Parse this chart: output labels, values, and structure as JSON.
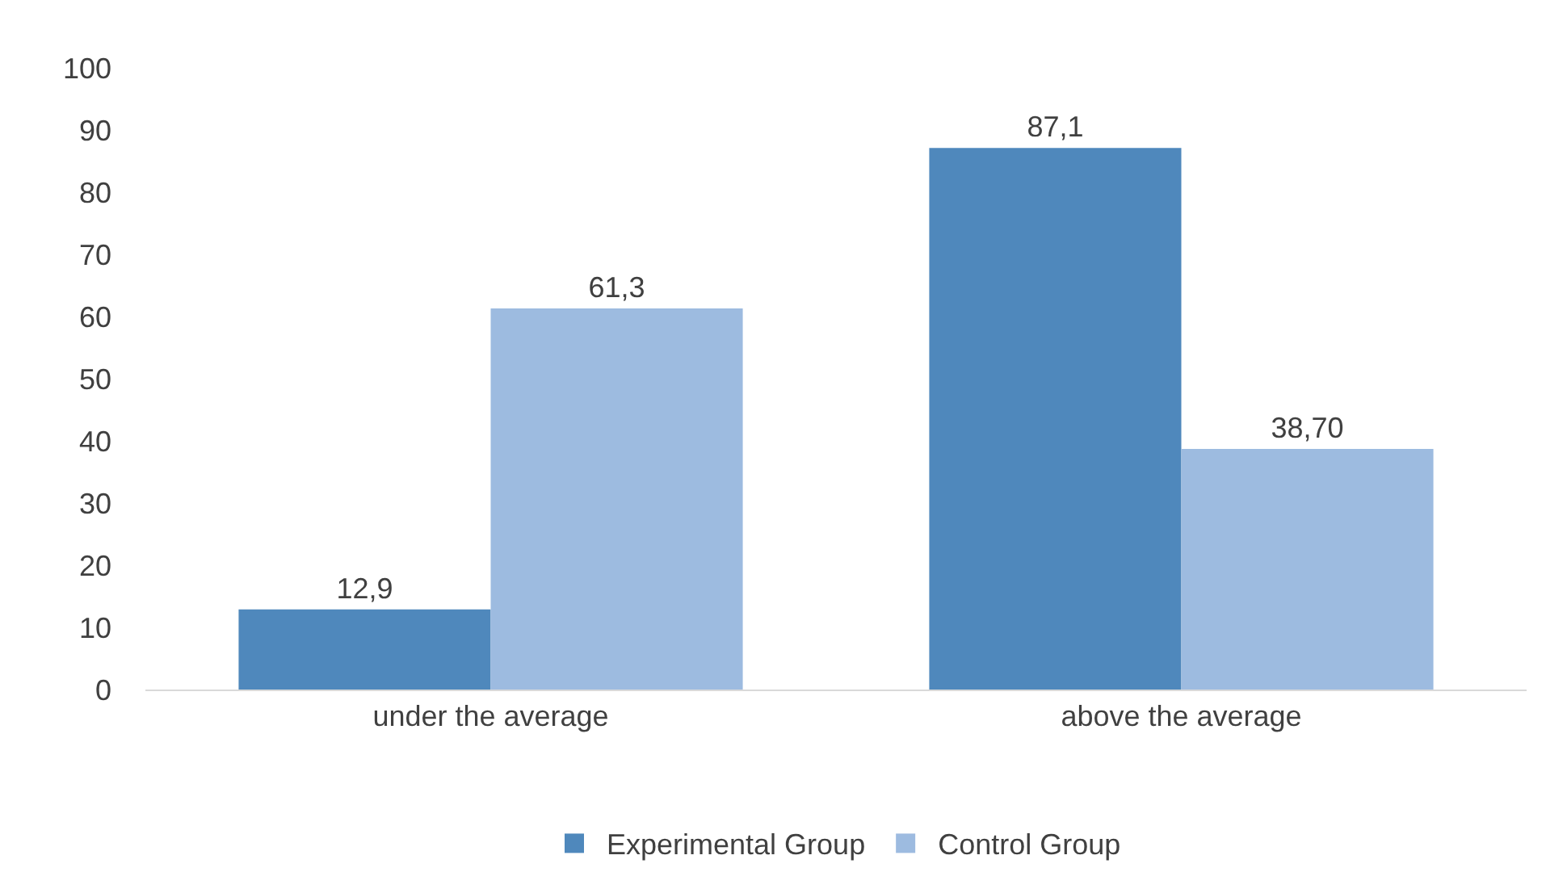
{
  "chart_data": {
    "type": "bar",
    "categories": [
      "under the average",
      "above the average"
    ],
    "series": [
      {
        "name": "Experimental Group",
        "color": "#4f88bc",
        "values": [
          12.9,
          87.1
        ],
        "value_labels": [
          "12,9",
          "87,1"
        ]
      },
      {
        "name": "Control Group",
        "color": "#9dbbe0",
        "values": [
          61.3,
          38.7
        ],
        "value_labels": [
          "61,3",
          "38,70"
        ]
      }
    ],
    "ylim": [
      0,
      100
    ],
    "yticks": [
      0,
      10,
      20,
      30,
      40,
      50,
      60,
      70,
      80,
      90,
      100
    ],
    "grid": false,
    "legend": "bottom"
  }
}
